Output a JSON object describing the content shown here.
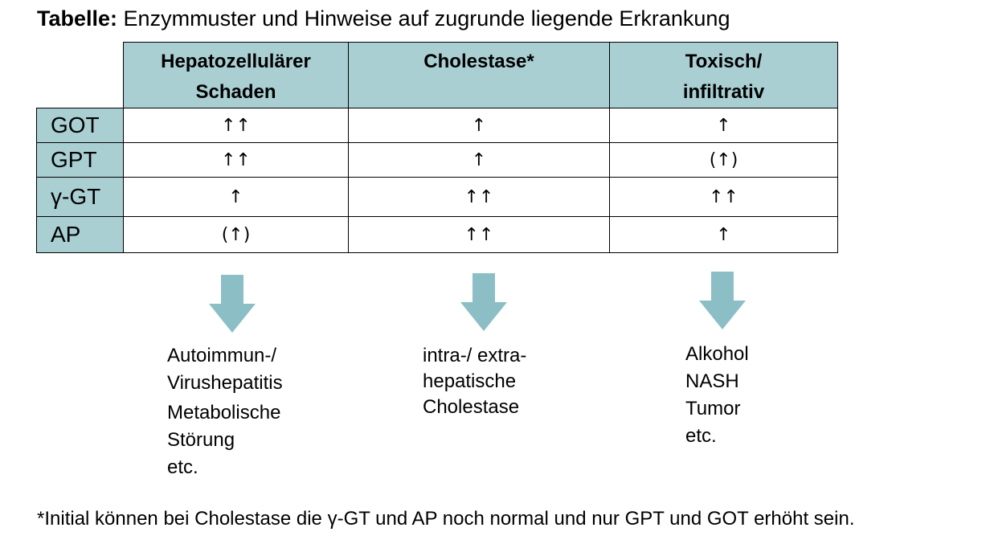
{
  "title": {
    "prefix": "Tabelle:",
    "text": "Enzymmuster und Hinweise auf zugrunde liegende Erkrankung"
  },
  "table": {
    "columns": [
      {
        "line1": "Hepatozellulärer",
        "line2": "Schaden"
      },
      {
        "line1": "Cholestase*",
        "line2": ""
      },
      {
        "line1": "Toxisch/",
        "line2": "infiltrativ"
      }
    ],
    "rows": [
      {
        "label": "GOT",
        "values": [
          "↑↑",
          "↑",
          "↑"
        ]
      },
      {
        "label": "GPT",
        "values": [
          "↑↑",
          "↑",
          "(↑)"
        ]
      },
      {
        "label": "γ-GT",
        "values": [
          "↑",
          "↑↑",
          "↑↑"
        ]
      },
      {
        "label": "AP",
        "values": [
          "(↑)",
          "↑↑",
          "↑"
        ]
      }
    ]
  },
  "causes": [
    [
      "Autoimmun-/",
      "Virushepatitis",
      "Metabolische",
      "Störung",
      "etc."
    ],
    [
      "intra-/ extra-",
      "hepatische",
      "Cholestase"
    ],
    [
      "Alkohol",
      "NASH",
      "Tumor",
      "etc."
    ]
  ],
  "footnote": "*Initial können bei Cholestase die γ-GT und AP noch normal und nur GPT und GOT erhöht sein.",
  "colors": {
    "header_fill": "#a9cfd3",
    "arrow_fill": "#8cbec6"
  },
  "icons": {
    "down_arrow": "down-arrow-icon"
  }
}
